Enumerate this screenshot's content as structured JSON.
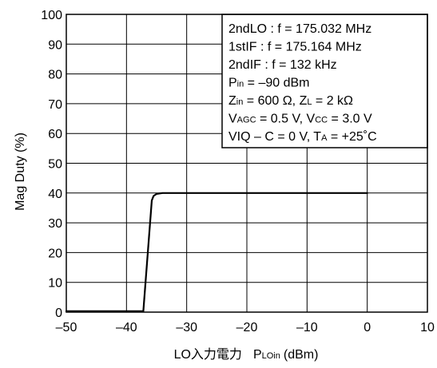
{
  "chart_data": {
    "type": "line",
    "title": "",
    "xlabel": {
      "main": "LO入力電力",
      "symbol": "P",
      "symbol_sub": "LOin",
      "unit": "(dBm)"
    },
    "ylabel": "Mag Duty  (%)",
    "xlim": [
      -50,
      10
    ],
    "ylim": [
      0,
      100
    ],
    "x_ticks": [
      -50,
      -40,
      -30,
      -20,
      -10,
      0,
      10
    ],
    "y_ticks": [
      0,
      10,
      20,
      30,
      40,
      50,
      60,
      70,
      80,
      90,
      100
    ],
    "x_tick_labels": [
      "–50",
      "–40",
      "–30",
      "–20",
      "–10",
      "0",
      "10"
    ],
    "y_tick_labels": [
      "0",
      "10",
      "20",
      "30",
      "40",
      "50",
      "60",
      "70",
      "80",
      "90",
      "100"
    ],
    "grid": true,
    "series": [
      {
        "x": [
          -50,
          -37.2,
          -35.8,
          -35.5,
          -35.0,
          -34.0,
          0
        ],
        "y": [
          0.3,
          0.3,
          37.5,
          39.0,
          39.7,
          40.0,
          40.0
        ]
      }
    ],
    "annotations": [
      [
        {
          "t": "2ndLO : f = 175.032 MHz"
        }
      ],
      [
        {
          "t": "1stIF : f = 175.164 MHz"
        }
      ],
      [
        {
          "t": "2ndIF : f = 132 kHz"
        }
      ],
      [
        {
          "t": "P"
        },
        {
          "t": "in",
          "sub": true
        },
        {
          "t": " = –90 dBm"
        }
      ],
      [
        {
          "t": "Z"
        },
        {
          "t": "in",
          "sub": true
        },
        {
          "t": " = 600 Ω, Z"
        },
        {
          "t": "L",
          "sub": true
        },
        {
          "t": " = 2 kΩ"
        }
      ],
      [
        {
          "t": "V"
        },
        {
          "t": "AGC",
          "sub": true
        },
        {
          "t": " = 0.5 V, V"
        },
        {
          "t": "CC",
          "sub": true
        },
        {
          "t": " = 3.0 V"
        }
      ],
      [
        {
          "t": "VIQ – C = 0 V, T"
        },
        {
          "t": "A",
          "sub": true
        },
        {
          "t": " = +25˚C"
        }
      ]
    ]
  }
}
